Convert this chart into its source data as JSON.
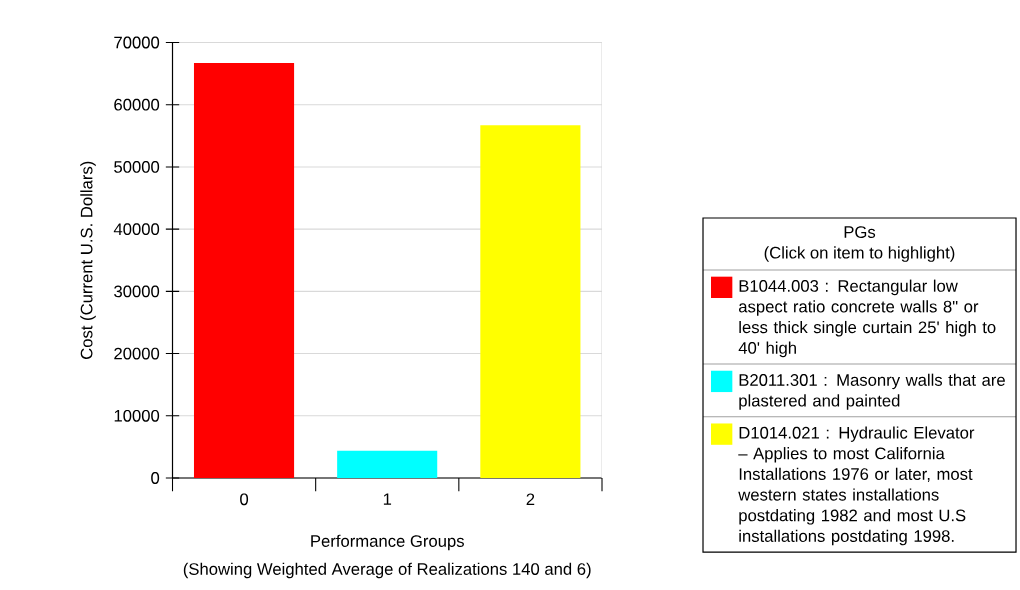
{
  "chart_data": {
    "type": "bar",
    "categories": [
      "0",
      "1",
      "2"
    ],
    "series": [
      {
        "name": "B1044.003 : Rectangular low aspect ratio concrete walls 8\" or less thick single curtain 25' high to 40' high",
        "color": "#ff0000",
        "values": [
          66700,
          null,
          null
        ]
      },
      {
        "name": "B2011.301 : Masonry walls that are plastered and painted",
        "color": "#00ffff",
        "values": [
          null,
          4400,
          null
        ]
      },
      {
        "name": "D1014.021 : Hydraulic Elevator – Applies to most California Installations 1976 or later, most western states installations postdating 1982 and most U.S installations postdating 1998.",
        "color": "#ffff00",
        "values": [
          null,
          null,
          56700
        ]
      }
    ],
    "xlabel": "Performance Groups",
    "ylabel": "Cost (Current U.S. Dollars)",
    "legend_title": "PGs",
    "annotations": [
      "(Showing Weighted Average of Realizations 140 and 6)",
      "(Click on item to highlight)"
    ],
    "ylim": [
      0,
      70000
    ],
    "yticks": [
      0,
      10000,
      20000,
      30000,
      40000,
      50000,
      60000,
      70000
    ],
    "grid": "y",
    "legend": "right"
  }
}
